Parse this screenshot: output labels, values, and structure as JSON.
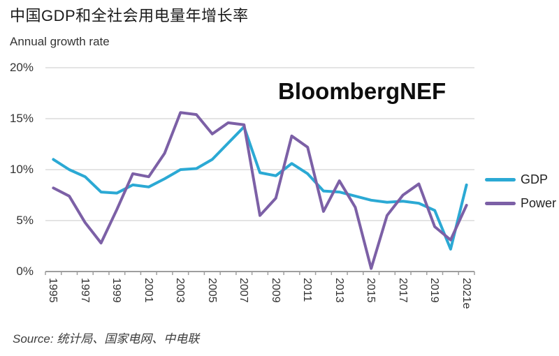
{
  "header": {
    "title": "中国GDP和全社会用电量年增长率",
    "subtitle": "Annual growth rate"
  },
  "watermark": "BloombergNEF",
  "source": "Source: 统计局、国家电网、中电联",
  "chart_data": {
    "type": "line",
    "title": "中国GDP和全社会用电量年增长率",
    "subtitle_ylabel": "Annual growth rate",
    "categories": [
      "1995",
      "1996",
      "1997",
      "1998",
      "1999",
      "2000",
      "2001",
      "2002",
      "2003",
      "2004",
      "2005",
      "2006",
      "2007",
      "2008",
      "2009",
      "2010",
      "2011",
      "2012",
      "2013",
      "2014",
      "2015",
      "2016",
      "2017",
      "2018",
      "2019",
      "2020",
      "2021e"
    ],
    "x_labels_shown": [
      "1995",
      "1997",
      "1999",
      "2001",
      "2003",
      "2005",
      "2007",
      "2009",
      "2011",
      "2013",
      "2015",
      "2017",
      "2019",
      "2021e"
    ],
    "series": [
      {
        "name": "GDP",
        "color": "#2BA9D4",
        "values": [
          11.0,
          10.0,
          9.3,
          7.8,
          7.7,
          8.5,
          8.3,
          9.1,
          10.0,
          10.1,
          11.0,
          12.6,
          14.2,
          9.7,
          9.4,
          10.6,
          9.6,
          7.9,
          7.8,
          7.4,
          7.0,
          6.8,
          6.9,
          6.7,
          6.0,
          2.2,
          8.5
        ]
      },
      {
        "name": "Power",
        "color": "#7C60A6",
        "values": [
          8.2,
          7.4,
          4.8,
          2.8,
          6.1,
          9.6,
          9.3,
          11.6,
          15.6,
          15.4,
          13.5,
          14.6,
          14.4,
          5.5,
          7.2,
          13.3,
          12.2,
          5.9,
          8.9,
          6.3,
          0.3,
          5.5,
          7.5,
          8.6,
          4.4,
          3.1,
          6.5
        ]
      }
    ],
    "y_ticks": [
      {
        "value": 0,
        "label": "0%"
      },
      {
        "value": 5,
        "label": "5%"
      },
      {
        "value": 10,
        "label": "10%"
      },
      {
        "value": 15,
        "label": "15%"
      },
      {
        "value": 20,
        "label": "20%"
      }
    ],
    "ylim": [
      0,
      20
    ],
    "grid": true,
    "legend_position": "right",
    "grid_color": "#C9C9C9",
    "axis_color": "#9E9E9E"
  }
}
